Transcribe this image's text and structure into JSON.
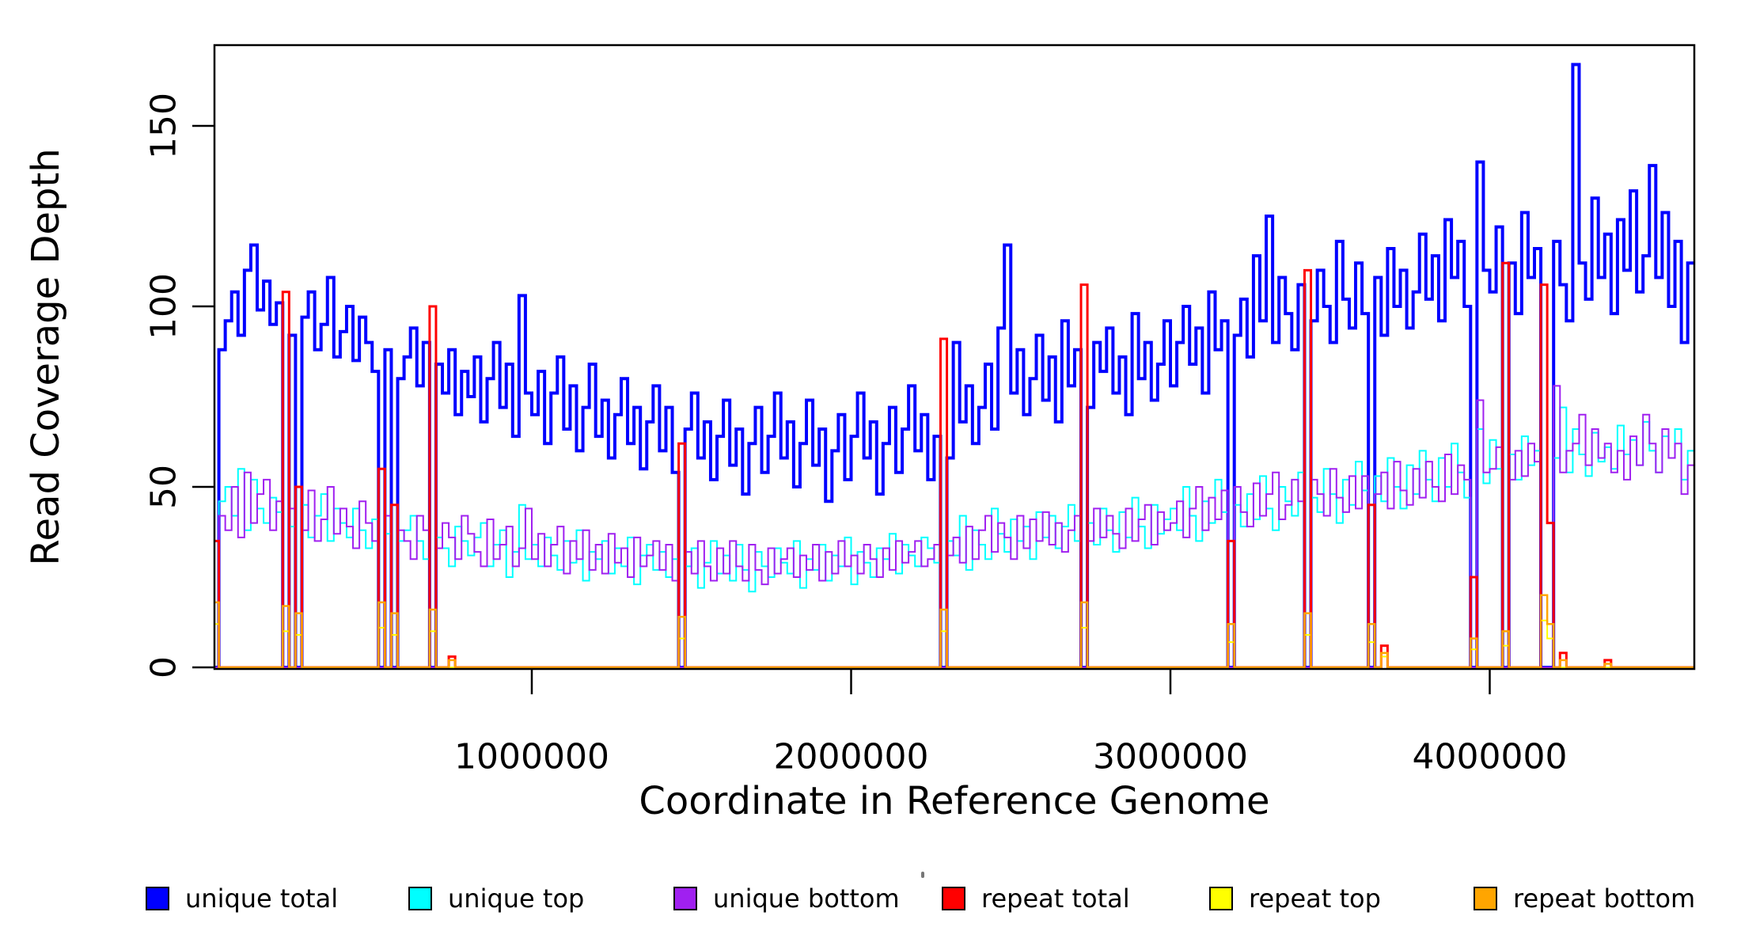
{
  "figure": {
    "background": "#ffffff"
  },
  "chart_data": {
    "type": "line",
    "step": true,
    "title": "",
    "xlabel": "Coordinate in Reference Genome",
    "ylabel": "Read Coverage Depth",
    "x_range": [
      0,
      4640000
    ],
    "y_range": [
      0,
      170
    ],
    "grid": false,
    "legend_position": "bottom",
    "bins": 232,
    "bin_size": 20000,
    "x_ticks": [
      1000000,
      2000000,
      3000000,
      4000000
    ],
    "x_tick_labels": [
      "1000000",
      "2000000",
      "3000000",
      "4000000"
    ],
    "y_ticks": [
      0,
      50,
      100,
      150
    ],
    "y_tick_labels": [
      "0",
      "50",
      "100",
      "150"
    ],
    "legend": [
      {
        "label": "unique total",
        "color": "#0000FF"
      },
      {
        "label": "unique top",
        "color": "#00FFFF"
      },
      {
        "label": "unique bottom",
        "color": "#A020F0"
      },
      {
        "label": "repeat total",
        "color": "#FF0000"
      },
      {
        "label": "repeat top",
        "color": "#FFFF00"
      },
      {
        "label": "repeat bottom",
        "color": "#FFA500"
      }
    ],
    "series": [
      {
        "name": "unique total",
        "color": "#0000FF",
        "width": 4,
        "values": [
          0,
          88,
          96,
          104,
          92,
          110,
          117,
          99,
          107,
          95,
          101,
          0,
          92,
          0,
          97,
          104,
          88,
          95,
          108,
          86,
          93,
          100,
          85,
          97,
          90,
          82,
          0,
          88,
          0,
          80,
          86,
          94,
          78,
          90,
          0,
          84,
          76,
          88,
          70,
          82,
          75,
          86,
          68,
          80,
          90,
          72,
          84,
          64,
          103,
          76,
          70,
          82,
          62,
          76,
          86,
          66,
          78,
          60,
          72,
          84,
          64,
          74,
          58,
          70,
          80,
          62,
          72,
          55,
          68,
          78,
          60,
          72,
          54,
          0,
          66,
          76,
          58,
          68,
          52,
          64,
          74,
          56,
          66,
          48,
          62,
          72,
          54,
          64,
          76,
          58,
          68,
          50,
          62,
          74,
          56,
          66,
          46,
          60,
          70,
          52,
          64,
          76,
          58,
          68,
          48,
          62,
          72,
          54,
          66,
          78,
          60,
          70,
          52,
          64,
          0,
          58,
          90,
          68,
          78,
          62,
          72,
          84,
          66,
          94,
          117,
          76,
          88,
          70,
          80,
          92,
          74,
          86,
          68,
          96,
          78,
          88,
          0,
          72,
          90,
          82,
          94,
          76,
          86,
          70,
          98,
          80,
          90,
          74,
          84,
          96,
          78,
          90,
          100,
          84,
          94,
          76,
          104,
          88,
          96,
          0,
          92,
          102,
          86,
          114,
          96,
          125,
          90,
          108,
          98,
          88,
          106,
          0,
          96,
          110,
          100,
          90,
          118,
          102,
          94,
          112,
          98,
          0,
          108,
          92,
          116,
          100,
          110,
          94,
          104,
          120,
          102,
          114,
          96,
          124,
          108,
          118,
          100,
          0,
          140,
          110,
          104,
          122,
          0,
          112,
          98,
          126,
          108,
          116,
          0,
          0,
          118,
          106,
          96,
          167,
          112,
          102,
          130,
          108,
          120,
          98,
          124,
          110,
          132,
          104,
          114,
          139,
          108,
          126,
          100,
          118,
          90,
          112
        ]
      },
      {
        "name": "unique top",
        "color": "#00FFFF",
        "width": 2,
        "values": [
          0,
          46,
          50,
          42,
          55,
          38,
          52,
          44,
          40,
          47,
          43,
          0,
          39,
          0,
          45,
          36,
          42,
          48,
          35,
          44,
          40,
          36,
          44,
          38,
          33,
          41,
          0,
          37,
          0,
          35,
          38,
          42,
          35,
          30,
          0,
          36,
          33,
          28,
          39,
          35,
          31,
          36,
          40,
          28,
          34,
          38,
          25,
          32,
          45,
          30,
          34,
          28,
          36,
          31,
          27,
          35,
          29,
          38,
          24,
          32,
          30,
          35,
          26,
          33,
          28,
          36,
          23,
          31,
          34,
          27,
          32,
          25,
          30,
          0,
          28,
          33,
          22,
          29,
          35,
          26,
          31,
          24,
          34,
          27,
          21,
          32,
          28,
          25,
          33,
          29,
          26,
          35,
          22,
          30,
          27,
          34,
          24,
          31,
          28,
          36,
          23,
          32,
          29,
          25,
          33,
          30,
          37,
          26,
          34,
          31,
          28,
          36,
          33,
          29,
          0,
          35,
          31,
          42,
          27,
          38,
          34,
          30,
          44,
          37,
          32,
          41,
          35,
          39,
          30,
          43,
          36,
          42,
          33,
          39,
          45,
          35,
          0,
          40,
          34,
          44,
          38,
          32,
          43,
          36,
          47,
          39,
          33,
          45,
          37,
          41,
          44,
          38,
          50,
          42,
          35,
          46,
          40,
          52,
          43,
          0,
          45,
          39,
          48,
          41,
          53,
          44,
          38,
          50,
          46,
          42,
          54,
          0,
          47,
          43,
          55,
          48,
          40,
          52,
          45,
          57,
          49,
          0,
          53,
          46,
          58,
          50,
          44,
          56,
          48,
          60,
          52,
          46,
          58,
          50,
          62,
          54,
          47,
          0,
          66,
          51,
          63,
          55,
          0,
          59,
          52,
          64,
          56,
          60,
          0,
          0,
          58,
          72,
          54,
          66,
          59,
          53,
          65,
          57,
          61,
          55,
          67,
          59,
          63,
          56,
          68,
          60,
          54,
          64,
          58,
          66,
          52,
          60
        ]
      },
      {
        "name": "unique bottom",
        "color": "#A020F0",
        "width": 2,
        "values": [
          0,
          42,
          38,
          50,
          36,
          54,
          40,
          48,
          52,
          38,
          46,
          0,
          44,
          0,
          38,
          49,
          35,
          41,
          50,
          37,
          44,
          39,
          33,
          46,
          40,
          35,
          0,
          42,
          0,
          38,
          35,
          30,
          42,
          38,
          0,
          33,
          40,
          36,
          30,
          42,
          37,
          32,
          28,
          41,
          30,
          34,
          39,
          28,
          33,
          44,
          30,
          37,
          28,
          34,
          39,
          26,
          35,
          30,
          38,
          27,
          34,
          26,
          37,
          29,
          33,
          25,
          36,
          28,
          31,
          35,
          27,
          34,
          24,
          0,
          32,
          26,
          35,
          28,
          24,
          33,
          26,
          35,
          28,
          24,
          34,
          27,
          23,
          33,
          26,
          30,
          33,
          25,
          31,
          27,
          34,
          24,
          32,
          26,
          35,
          28,
          31,
          26,
          34,
          30,
          25,
          33,
          27,
          35,
          29,
          32,
          35,
          28,
          30,
          34,
          0,
          31,
          36,
          29,
          39,
          30,
          38,
          42,
          32,
          40,
          36,
          30,
          42,
          33,
          41,
          35,
          43,
          34,
          40,
          32,
          38,
          42,
          0,
          35,
          44,
          36,
          42,
          37,
          33,
          44,
          35,
          41,
          45,
          34,
          43,
          38,
          40,
          46,
          36,
          44,
          50,
          38,
          47,
          41,
          49,
          0,
          50,
          43,
          39,
          51,
          42,
          48,
          54,
          41,
          45,
          52,
          46,
          0,
          52,
          48,
          42,
          55,
          47,
          43,
          53,
          44,
          53,
          0,
          48,
          54,
          44,
          57,
          49,
          45,
          55,
          47,
          57,
          50,
          46,
          59,
          48,
          56,
          52,
          0,
          74,
          54,
          55,
          61,
          0,
          52,
          60,
          53,
          62,
          57,
          0,
          0,
          78,
          54,
          60,
          62,
          70,
          56,
          66,
          58,
          62,
          54,
          60,
          52,
          64,
          56,
          70,
          62,
          54,
          66,
          58,
          62,
          48,
          56
        ]
      },
      {
        "name": "repeat total",
        "color": "#FF0000",
        "width": 3,
        "baseline": 0,
        "spikes": {
          "0": 35,
          "11": 104,
          "13": 50,
          "26": 55,
          "28": 45,
          "34": 100,
          "37": 3,
          "73": 62,
          "114": 91,
          "136": 106,
          "159": 35,
          "171": 110,
          "181": 45,
          "183": 6,
          "197": 25,
          "202": 112,
          "208": 106,
          "209": 40,
          "211": 4,
          "218": 2
        }
      },
      {
        "name": "repeat top",
        "color": "#FFFF00",
        "width": 2,
        "baseline": 0,
        "spikes": {
          "0": 12,
          "11": 10,
          "13": 9,
          "26": 11,
          "28": 9,
          "34": 10,
          "73": 8,
          "114": 10,
          "136": 11,
          "159": 7,
          "171": 9,
          "181": 7,
          "183": 3,
          "197": 5,
          "202": 6,
          "208": 13,
          "209": 8
        }
      },
      {
        "name": "repeat bottom",
        "color": "#FFA500",
        "width": 2.5,
        "baseline": 0,
        "spikes": {
          "0": 18,
          "11": 17,
          "13": 15,
          "26": 18,
          "28": 15,
          "34": 16,
          "37": 2,
          "73": 14,
          "114": 16,
          "136": 18,
          "159": 12,
          "171": 15,
          "181": 12,
          "183": 4,
          "197": 8,
          "202": 10,
          "208": 20,
          "209": 12,
          "211": 2,
          "218": 1
        }
      }
    ]
  }
}
